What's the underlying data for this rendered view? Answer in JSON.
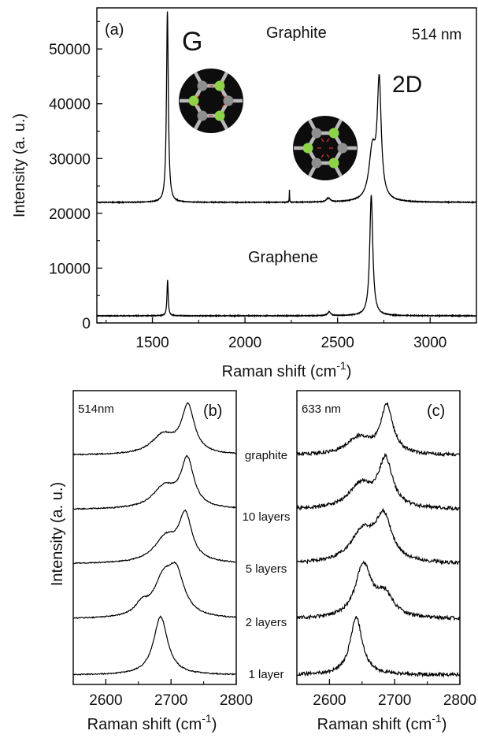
{
  "chart_data": [
    {
      "panel": "(a)",
      "type": "line",
      "title": "",
      "xlabel": "Raman shift (cm",
      "xlabel_sup": "-1",
      "xlabel_close": ")",
      "ylabel": "Intensity (a. u.)",
      "xlim": [
        1200,
        3250
      ],
      "ylim": [
        0,
        57500
      ],
      "xticks": [
        1500,
        2000,
        2500,
        3000
      ],
      "yticks": [
        0,
        10000,
        20000,
        30000,
        40000,
        50000
      ],
      "wavelength": "514 nm",
      "annotations": {
        "G": "G",
        "D2": "2D",
        "graphite": "Graphite",
        "graphene": "Graphene"
      },
      "series": [
        {
          "name": "Graphite",
          "baseline": 22000,
          "peaks": [
            {
              "center": 1581,
              "height": 34800,
              "width": 6
            },
            {
              "center": 2240,
              "height": 2300,
              "width": 1
            },
            {
              "center": 2450,
              "height": 700,
              "width": 12
            },
            {
              "center": 2688,
              "height": 9000,
              "width": 22
            },
            {
              "center": 2725,
              "height": 21000,
              "width": 13
            }
          ]
        },
        {
          "name": "Graphene",
          "baseline": 1300,
          "peaks": [
            {
              "center": 1582,
              "height": 6500,
              "width": 4
            },
            {
              "center": 2455,
              "height": 700,
              "width": 10
            },
            {
              "center": 2682,
              "height": 22000,
              "width": 10
            }
          ]
        }
      ]
    },
    {
      "panel": "(b)",
      "type": "line",
      "xlabel": "Raman shift (cm",
      "xlabel_sup": "-1",
      "xlabel_close": ")",
      "ylabel": "Intensity (a. u.)",
      "xlim": [
        2550,
        2800
      ],
      "xticks": [
        2600,
        2700,
        2800
      ],
      "wavelength": "514nm",
      "series_labels": [
        "graphite",
        "10 layers",
        "5 layers",
        "2 layers",
        "1 layer"
      ],
      "series": [
        {
          "name": "graphite",
          "peaks": [
            {
              "center": 2726,
              "height": 1.0,
              "width": 12
            },
            {
              "center": 2688,
              "height": 0.4,
              "width": 22
            }
          ]
        },
        {
          "name": "10 layers",
          "peaks": [
            {
              "center": 2725,
              "height": 1.0,
              "width": 12
            },
            {
              "center": 2690,
              "height": 0.45,
              "width": 22
            }
          ]
        },
        {
          "name": "5 layers",
          "peaks": [
            {
              "center": 2722,
              "height": 1.0,
              "width": 12
            },
            {
              "center": 2692,
              "height": 0.55,
              "width": 22
            }
          ]
        },
        {
          "name": "2 layers",
          "peaks": [
            {
              "center": 2708,
              "height": 0.75,
              "width": 15
            },
            {
              "center": 2688,
              "height": 0.65,
              "width": 18
            },
            {
              "center": 2655,
              "height": 0.2,
              "width": 12
            }
          ]
        },
        {
          "name": "1 layer",
          "peaks": [
            {
              "center": 2684,
              "height": 1.0,
              "width": 13
            }
          ]
        }
      ]
    },
    {
      "panel": "(c)",
      "type": "line",
      "xlabel": "Raman shift (cm",
      "xlabel_sup": "-1",
      "xlabel_close": ")",
      "xlim": [
        2550,
        2800
      ],
      "xticks": [
        2600,
        2700,
        2800
      ],
      "wavelength": "633 nm",
      "series": [
        {
          "name": "graphite",
          "peaks": [
            {
              "center": 2688,
              "height": 1.0,
              "width": 11
            },
            {
              "center": 2645,
              "height": 0.35,
              "width": 22
            }
          ]
        },
        {
          "name": "10 layers",
          "peaks": [
            {
              "center": 2686,
              "height": 0.9,
              "width": 13
            },
            {
              "center": 2648,
              "height": 0.45,
              "width": 22
            }
          ]
        },
        {
          "name": "5 layers",
          "peaks": [
            {
              "center": 2683,
              "height": 0.8,
              "width": 15
            },
            {
              "center": 2650,
              "height": 0.55,
              "width": 22
            }
          ]
        },
        {
          "name": "2 layers",
          "peaks": [
            {
              "center": 2652,
              "height": 0.85,
              "width": 15
            },
            {
              "center": 2685,
              "height": 0.35,
              "width": 16
            }
          ]
        },
        {
          "name": "1 layer",
          "peaks": [
            {
              "center": 2641,
              "height": 1.0,
              "width": 11
            }
          ]
        }
      ]
    }
  ]
}
